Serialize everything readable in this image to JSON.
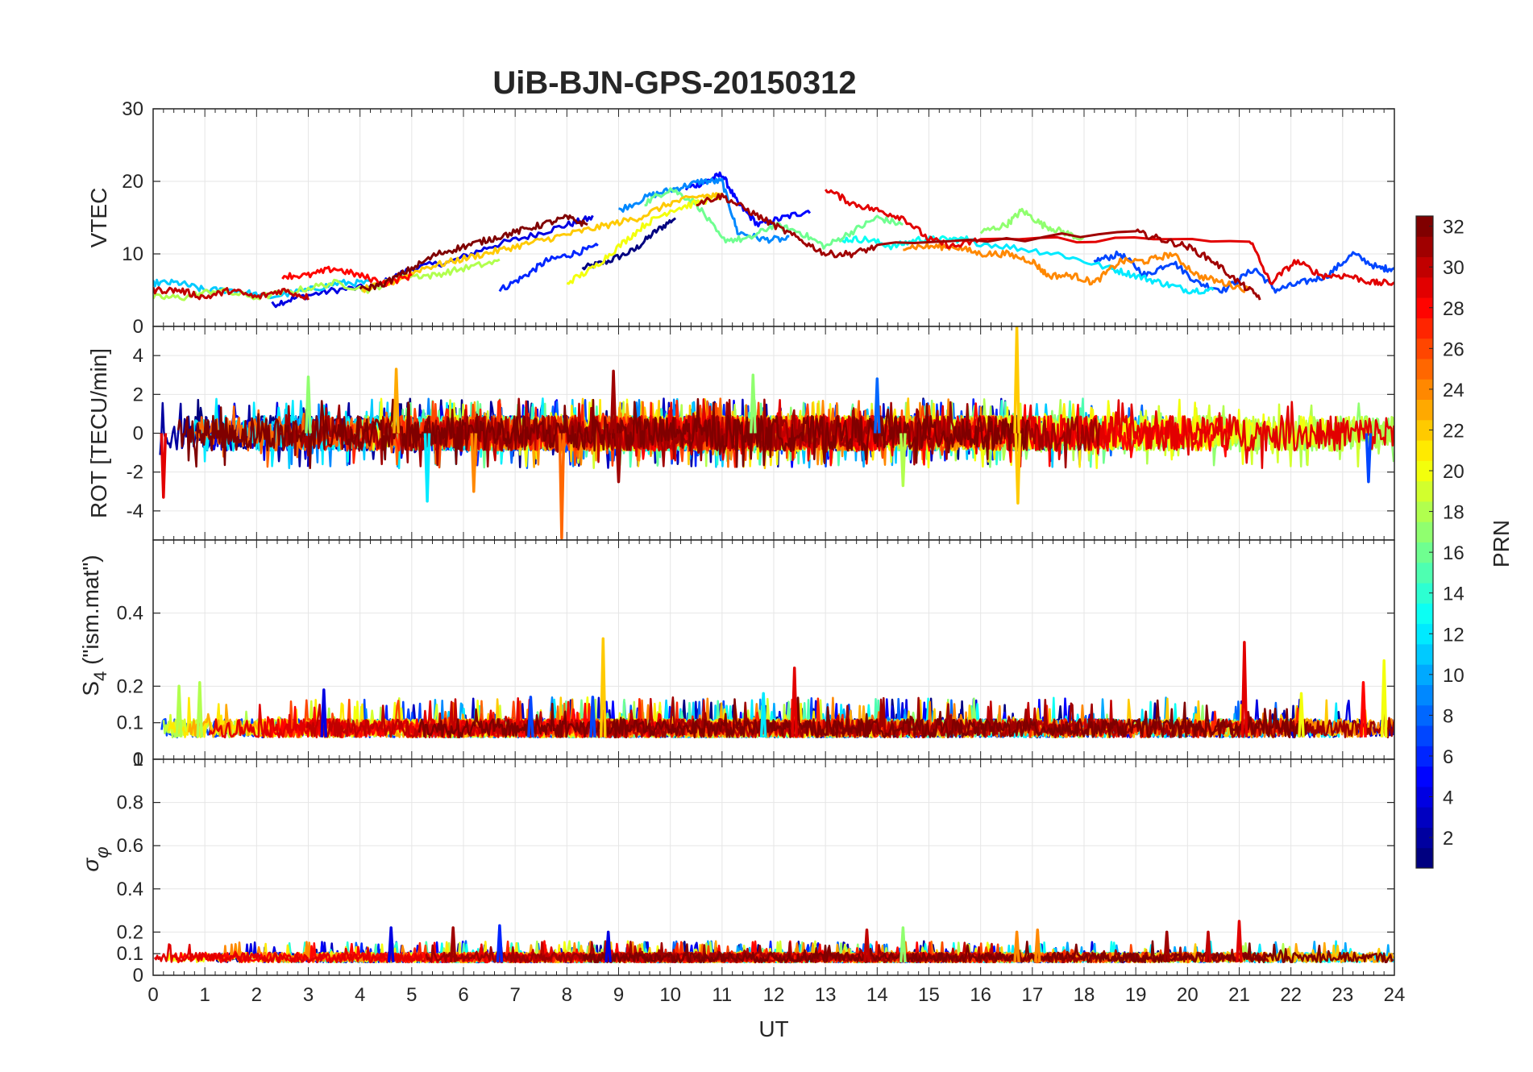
{
  "title": "UiB-BJN-GPS-20150312",
  "colors": {
    "axis": "#262626",
    "grid": "#e6e6e6",
    "background": "#ffffff",
    "colormap": "jet"
  },
  "colorbar": {
    "label": "PRN",
    "range": [
      1,
      32
    ],
    "ticks": [
      "2",
      "4",
      "6",
      "8",
      "10",
      "12",
      "14",
      "16",
      "18",
      "20",
      "22",
      "24",
      "26",
      "28",
      "30",
      "32"
    ]
  },
  "chart_data": [
    {
      "type": "line",
      "panel": "vtec",
      "ylabel": "VTEC",
      "ylim": [
        0,
        30
      ],
      "yticks": [
        "0",
        "10",
        "20",
        "30"
      ],
      "xlim": [
        0,
        24
      ],
      "grid": true,
      "series": [
        {
          "prn": 1,
          "x": [
            8.3,
            8.8,
            9.3,
            9.7,
            10.1
          ],
          "y": [
            8,
            9,
            10.5,
            13,
            15
          ]
        },
        {
          "prn": 4,
          "x": [
            2.3,
            2.8,
            3.5,
            4.3,
            5.0,
            5.8,
            6.5,
            7.3,
            8.0,
            8.5
          ],
          "y": [
            3,
            4,
            5,
            5.5,
            8,
            9,
            11,
            12.5,
            14,
            15
          ]
        },
        {
          "prn": 5,
          "x": [
            10.3,
            10.7,
            11.0,
            11.3,
            11.7,
            12.2,
            12.7
          ],
          "y": [
            19,
            20,
            21,
            17,
            14,
            15,
            16
          ]
        },
        {
          "prn": 6,
          "x": [
            6.7,
            7.2,
            7.6,
            8.1,
            8.6
          ],
          "y": [
            5,
            7,
            9,
            10,
            11
          ]
        },
        {
          "prn": 7,
          "x": [
            18.2,
            18.7,
            19.2,
            19.7,
            20.2,
            20.7,
            21.3,
            21.7,
            22.2,
            22.7,
            23.2,
            23.7,
            24.0
          ],
          "y": [
            9,
            10,
            7,
            9,
            6,
            5,
            8,
            5,
            6,
            7,
            10,
            8,
            8
          ]
        },
        {
          "prn": 9,
          "x": [
            9.0,
            9.6,
            10.1,
            10.6,
            11.0,
            11.3,
            11.8,
            12.3
          ],
          "y": [
            16,
            18,
            19,
            20,
            20,
            13,
            12,
            12
          ]
        },
        {
          "prn": 11,
          "x": [
            0.0,
            0.5,
            1.0,
            1.6,
            2.2,
            3.0,
            3.6,
            4.2
          ],
          "y": [
            6,
            6,
            5,
            5,
            4,
            5,
            6,
            6
          ]
        },
        {
          "prn": 12,
          "x": [
            15.5,
            16.5,
            17.5,
            18.5,
            19.0,
            19.5,
            20.0,
            20.5
          ],
          "y": [
            12,
            11,
            10,
            8,
            7,
            6,
            5,
            5
          ]
        },
        {
          "prn": 13,
          "x": [
            13.3,
            13.8,
            14.3,
            14.8,
            15.3,
            15.8
          ],
          "y": [
            12,
            12,
            11,
            12,
            12,
            12
          ]
        },
        {
          "prn": 16,
          "x": [
            9.5,
            10.0,
            10.5,
            11.0,
            11.5,
            12.0,
            12.5,
            13.0,
            13.5,
            14.0,
            14.5
          ],
          "y": [
            17,
            19,
            17,
            12,
            12,
            14,
            13,
            11,
            13,
            15,
            14
          ]
        },
        {
          "prn": 17,
          "x": [
            16.0,
            16.5,
            16.8,
            17.2,
            17.6,
            18.0
          ],
          "y": [
            13,
            14,
            16,
            14,
            13,
            12
          ]
        },
        {
          "prn": 18,
          "x": [
            0.0,
            0.6,
            1.2,
            2.0,
            2.8,
            3.5,
            4.2,
            4.8,
            5.4,
            6.0,
            6.7
          ],
          "y": [
            4,
            4,
            5,
            4,
            5,
            6,
            5,
            7,
            7,
            8,
            9
          ]
        },
        {
          "prn": 20,
          "x": [
            8.0,
            8.5,
            9.0,
            9.5,
            10.0,
            10.5,
            11.0
          ],
          "y": [
            6,
            8,
            11,
            14,
            16,
            17,
            18
          ]
        },
        {
          "prn": 22,
          "x": [
            4.0,
            4.6,
            5.2,
            5.8,
            6.4,
            7.0,
            7.6,
            8.2,
            8.8,
            9.4,
            10.0,
            10.6,
            11.0
          ],
          "y": [
            5,
            6,
            8,
            9,
            10,
            11,
            12,
            13,
            14,
            15,
            17,
            18,
            18
          ]
        },
        {
          "prn": 24,
          "x": [
            14.5,
            15.0,
            15.5,
            16.0,
            16.5,
            17.0,
            17.3,
            17.8,
            18.2,
            18.7,
            19.2,
            19.7,
            20.2,
            20.7,
            21.2
          ],
          "y": [
            11,
            11,
            11,
            10,
            10,
            9,
            7,
            7,
            6,
            9,
            9,
            10,
            7,
            6,
            5
          ]
        },
        {
          "prn": 28,
          "x": [
            2.5,
            3.0,
            3.5,
            4.0,
            4.5,
            5.0
          ],
          "y": [
            7,
            7,
            8,
            7,
            6,
            7
          ]
        },
        {
          "prn": 29,
          "x": [
            13.0,
            13.5,
            14.0,
            14.5,
            15.0,
            15.5,
            16.0,
            21.2,
            21.6,
            22.1,
            22.6,
            23.1,
            23.6,
            24.0
          ],
          "y": [
            19,
            17,
            16,
            15,
            12,
            11,
            12,
            12,
            6,
            9,
            7,
            7,
            6,
            6
          ]
        },
        {
          "prn": 30,
          "x": [
            0.0,
            0.5,
            1.0,
            1.5,
            2.0,
            2.5,
            3.0
          ],
          "y": [
            5,
            5,
            4,
            5,
            4,
            5,
            4
          ]
        },
        {
          "prn": 31,
          "x": [
            10.5,
            11.0,
            11.5,
            12.0,
            12.5,
            13.0,
            13.5,
            14.0,
            19.0,
            19.5,
            20.0,
            20.5,
            21.0,
            21.4
          ],
          "y": [
            17,
            18,
            16,
            14,
            12,
            10,
            10,
            11,
            13,
            12,
            11,
            9,
            6,
            4
          ]
        },
        {
          "prn": 32,
          "x": [
            4.0,
            4.5,
            5.0,
            5.5,
            6.0,
            6.5,
            7.0,
            7.5,
            8.0,
            8.4
          ],
          "y": [
            5,
            6,
            8,
            10,
            11,
            12,
            13,
            14,
            15,
            14
          ]
        }
      ]
    },
    {
      "type": "line",
      "panel": "rot",
      "ylabel": "ROT [TECU/min]",
      "ylim": [
        -5.5,
        5.5
      ],
      "yticks": [
        "-4",
        "-2",
        "0",
        "2",
        "4"
      ],
      "xlim": [
        0,
        24
      ],
      "grid": true,
      "peaks": [
        {
          "prn": 22,
          "x": 16.7,
          "y": 5.5
        },
        {
          "prn": 22,
          "x": 16.72,
          "y": -3.6
        },
        {
          "prn": 25,
          "x": 7.9,
          "y": -5.4
        },
        {
          "prn": 31,
          "x": 8.9,
          "y": 3.2
        },
        {
          "prn": 31,
          "x": 9.0,
          "y": -2.5
        },
        {
          "prn": 29,
          "x": 0.2,
          "y": -3.3
        },
        {
          "prn": 12,
          "x": 5.3,
          "y": -3.5
        },
        {
          "prn": 24,
          "x": 6.2,
          "y": -3.0
        },
        {
          "prn": 23,
          "x": 4.7,
          "y": 3.3
        },
        {
          "prn": 17,
          "x": 3.0,
          "y": 2.9
        },
        {
          "prn": 17,
          "x": 11.6,
          "y": 3.0
        },
        {
          "prn": 8,
          "x": 14.0,
          "y": 2.8
        },
        {
          "prn": 7,
          "x": 23.5,
          "y": -2.5
        },
        {
          "prn": 18,
          "x": 14.5,
          "y": -2.7
        }
      ]
    },
    {
      "type": "line",
      "panel": "s4",
      "ylabel": "S4 (\"ism.mat\")",
      "ylim": [
        0,
        0.6
      ],
      "yticks": [
        "0",
        "0.1",
        "0.2",
        "0.4"
      ],
      "xlim": [
        0,
        24
      ],
      "grid": true,
      "peaks": [
        {
          "prn": 22,
          "x": 8.7,
          "y": 0.33
        },
        {
          "prn": 29,
          "x": 12.4,
          "y": 0.25
        },
        {
          "prn": 29,
          "x": 21.1,
          "y": 0.32
        },
        {
          "prn": 28,
          "x": 23.4,
          "y": 0.21
        },
        {
          "prn": 20,
          "x": 23.8,
          "y": 0.27
        },
        {
          "prn": 18,
          "x": 0.5,
          "y": 0.2
        },
        {
          "prn": 18,
          "x": 0.9,
          "y": 0.21
        },
        {
          "prn": 4,
          "x": 3.3,
          "y": 0.19
        },
        {
          "prn": 12,
          "x": 11.8,
          "y": 0.18
        },
        {
          "prn": 20,
          "x": 22.2,
          "y": 0.18
        },
        {
          "prn": 7,
          "x": 7.3,
          "y": 0.17
        },
        {
          "prn": 7,
          "x": 8.5,
          "y": 0.17
        }
      ]
    },
    {
      "type": "line",
      "panel": "sigma-phi",
      "ylabel": "σ_φ",
      "ylim": [
        0,
        1
      ],
      "yticks": [
        "0",
        "0.1",
        "0.2",
        "0.4",
        "0.6",
        "0.8",
        "1"
      ],
      "xlim": [
        0,
        24
      ],
      "xlabel": "UT",
      "xticks": [
        "0",
        "1",
        "2",
        "3",
        "4",
        "5",
        "6",
        "7",
        "8",
        "9",
        "10",
        "11",
        "12",
        "13",
        "14",
        "15",
        "16",
        "17",
        "18",
        "19",
        "20",
        "21",
        "22",
        "23",
        "24"
      ],
      "grid": true,
      "peaks": [
        {
          "prn": 6,
          "x": 6.7,
          "y": 0.23
        },
        {
          "prn": 4,
          "x": 4.6,
          "y": 0.22
        },
        {
          "prn": 31,
          "x": 5.8,
          "y": 0.22
        },
        {
          "prn": 29,
          "x": 21.0,
          "y": 0.25
        },
        {
          "prn": 30,
          "x": 13.8,
          "y": 0.21
        },
        {
          "prn": 17,
          "x": 14.5,
          "y": 0.22
        },
        {
          "prn": 24,
          "x": 16.7,
          "y": 0.2
        },
        {
          "prn": 24,
          "x": 17.1,
          "y": 0.21
        },
        {
          "prn": 31,
          "x": 19.6,
          "y": 0.2
        },
        {
          "prn": 30,
          "x": 20.4,
          "y": 0.2
        },
        {
          "prn": 4,
          "x": 8.8,
          "y": 0.2
        }
      ]
    }
  ]
}
